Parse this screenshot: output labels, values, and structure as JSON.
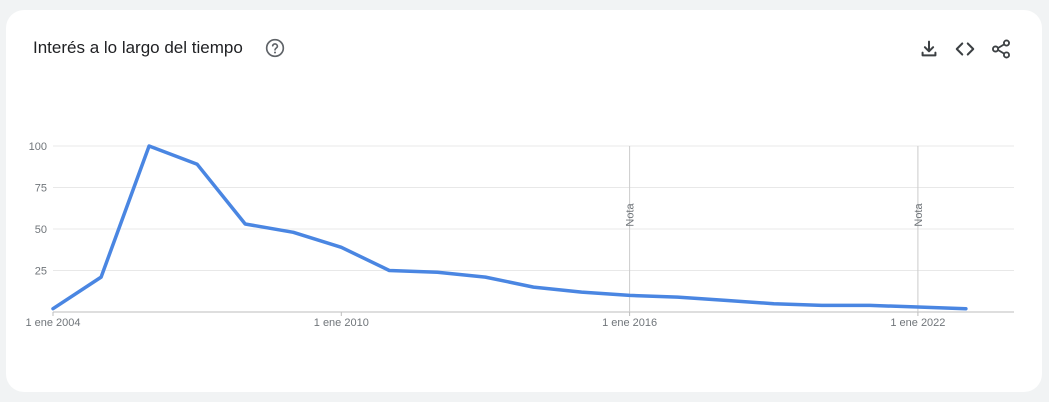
{
  "header": {
    "title": "Interés a lo largo del tiempo",
    "help_icon": "help-circle-icon",
    "tools": [
      {
        "name": "download-icon"
      },
      {
        "name": "embed-code-icon"
      },
      {
        "name": "share-icon"
      }
    ]
  },
  "colors": {
    "line": "#4a86e2",
    "grid": "#e8e8e8",
    "axis_text": "#70757a",
    "note_line": "#cccccc"
  },
  "chart_data": {
    "type": "line",
    "title": "",
    "xlabel": "",
    "ylabel": "",
    "ylim": [
      0,
      100
    ],
    "yticks": [
      25,
      50,
      75,
      100
    ],
    "xticks": [
      {
        "year": 2004,
        "label": "1 ene 2004"
      },
      {
        "year": 2010,
        "label": "1 ene 2010"
      },
      {
        "year": 2016,
        "label": "1 ene 2016"
      },
      {
        "year": 2022,
        "label": "1 ene 2022"
      }
    ],
    "grid": true,
    "series": [
      {
        "x": [
          2004,
          2005,
          2006,
          2007,
          2008,
          2009,
          2010,
          2011,
          2012,
          2013,
          2014,
          2015,
          2016,
          2017,
          2018,
          2019,
          2020,
          2021,
          2022,
          2023
        ],
        "values": [
          2,
          21,
          100,
          89,
          53,
          48,
          39,
          25,
          24,
          21,
          15,
          12,
          10,
          9,
          7,
          5,
          4,
          4,
          3,
          2
        ]
      }
    ],
    "annotations": [
      {
        "year": 2016,
        "label": "Nota"
      },
      {
        "year": 2022,
        "label": "Nota"
      }
    ]
  }
}
